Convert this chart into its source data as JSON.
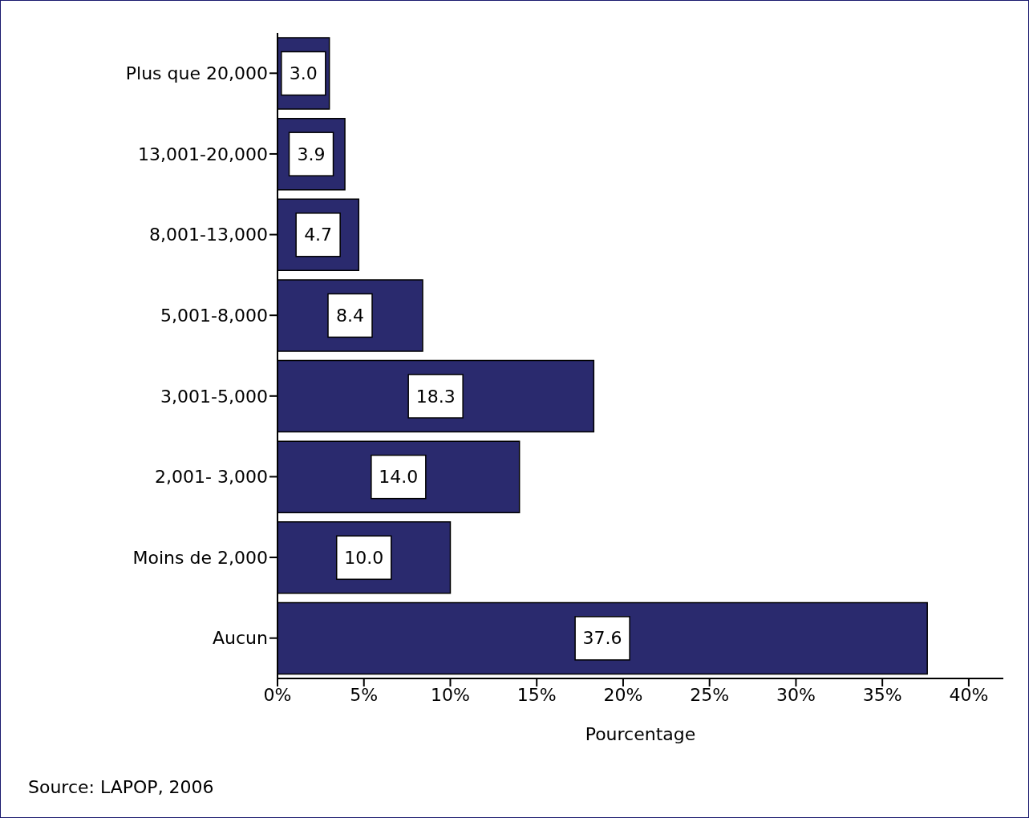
{
  "chart_data": {
    "type": "bar",
    "orientation": "horizontal",
    "categories": [
      "Plus que 20,000",
      "13,001-20,000",
      "8,001-13,000",
      "5,001-8,000",
      "3,001-5,000",
      "2,001- 3,000",
      "Moins de 2,000",
      "Aucun"
    ],
    "values": [
      3.0,
      3.9,
      4.7,
      8.4,
      18.3,
      14.0,
      10.0,
      37.6
    ],
    "value_labels": [
      "3.0",
      "3.9",
      "4.7",
      "8.4",
      "18.3",
      "14.0",
      "10.0",
      "37.6"
    ],
    "color": "#2a2a6e",
    "xlim": [
      0,
      42
    ],
    "xticks": [
      {
        "value": 0,
        "label": "0%"
      },
      {
        "value": 5,
        "label": "5%"
      },
      {
        "value": 10,
        "label": "10%"
      },
      {
        "value": 15,
        "label": "15%"
      },
      {
        "value": 20,
        "label": "20%"
      },
      {
        "value": 25,
        "label": "25%"
      },
      {
        "value": 30,
        "label": "30%"
      },
      {
        "value": 35,
        "label": "35%"
      },
      {
        "value": 40,
        "label": "40%"
      }
    ],
    "xlabel": "Pourcentage",
    "annotations": [
      "Source: LAPOP, 2006"
    ]
  }
}
